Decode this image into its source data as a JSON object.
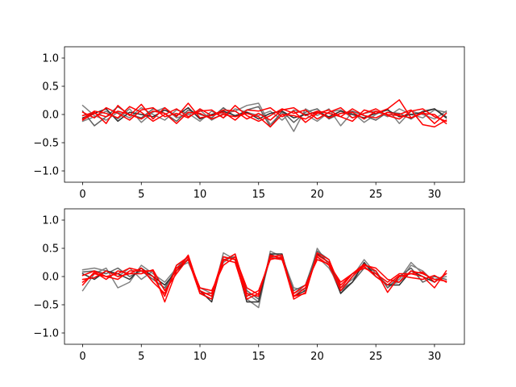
{
  "chart_data": [
    {
      "type": "line",
      "title": "",
      "xlabel": "",
      "ylabel": "",
      "xlim": [
        -1.55,
        32.55
      ],
      "ylim": [
        -1.2,
        1.2
      ],
      "xticks": [
        0,
        5,
        10,
        15,
        20,
        25,
        30
      ],
      "yticks": [
        -1.0,
        -0.5,
        0.0,
        0.5,
        1.0
      ],
      "xtick_labels": [
        "0",
        "5",
        "10",
        "15",
        "20",
        "25",
        "30"
      ],
      "ytick_labels": [
        "−1.0",
        "−0.5",
        "0.0",
        "0.5",
        "1.0"
      ],
      "grid": false,
      "series": [
        {
          "color": "#808080",
          "values": [
            0.16,
            -0.02,
            -0.1,
            0.04,
            -0.06,
            0.12,
            0.0,
            -0.1,
            0.08,
            0.02,
            -0.12,
            0.06,
            -0.06,
            0.1,
            0.04,
            -0.02,
            0.06,
            -0.1,
            0.08,
            0.0,
            -0.12,
            0.04,
            0.08,
            -0.06,
            0.02,
            0.06,
            -0.04,
            0.1,
            0.0,
            -0.06,
            0.08,
            0.04
          ]
        },
        {
          "color": "#808080",
          "values": [
            -0.12,
            -0.04,
            0.06,
            -0.08,
            0.1,
            -0.14,
            0.04,
            0.12,
            -0.06,
            0.0,
            0.08,
            -0.1,
            0.02,
            0.06,
            0.16,
            0.2,
            -0.18,
            0.04,
            -0.3,
            0.1,
            -0.02,
            0.1,
            -0.2,
            0.04,
            -0.14,
            0.0,
            0.1,
            -0.16,
            0.06,
            0.0,
            -0.08,
            0.06
          ]
        },
        {
          "color": "#606060",
          "values": [
            0.06,
            -0.2,
            -0.04,
            0.14,
            0.0,
            -0.06,
            0.1,
            0.02,
            -0.12,
            0.08,
            0.0,
            -0.06,
            0.12,
            -0.04,
            0.08,
            0.14,
            -0.22,
            0.06,
            -0.14,
            0.04,
            0.1,
            -0.08,
            0.02,
            0.06,
            -0.02,
            -0.1,
            0.04,
            0.02,
            -0.08,
            0.06,
            0.1,
            -0.04
          ]
        },
        {
          "color": "#303030",
          "values": [
            -0.06,
            0.02,
            0.1,
            -0.12,
            0.04,
            0.0,
            -0.04,
            0.08,
            -0.02,
            0.12,
            -0.08,
            0.0,
            0.06,
            -0.02,
            0.04,
            -0.08,
            0.02,
            0.06,
            -0.06,
            0.0,
            0.04,
            -0.04,
            0.06,
            0.0,
            -0.06,
            0.02,
            0.08,
            -0.04,
            0.0,
            0.04,
            0.1,
            -0.06
          ]
        },
        {
          "color": "#ff0000",
          "values": [
            -0.02,
            0.04,
            -0.16,
            0.16,
            -0.02,
            0.18,
            -0.08,
            0.12,
            -0.04,
            0.2,
            -0.06,
            -0.02,
            0.08,
            0.06,
            -0.08,
            0.02,
            -0.1,
            0.08,
            0.12,
            -0.02,
            0.06,
            0.02,
            -0.04,
            -0.12,
            0.08,
            0.02,
            0.1,
            0.26,
            -0.06,
            0.04,
            -0.16,
            0.02
          ]
        },
        {
          "color": "#ff0000",
          "values": [
            -0.08,
            0.06,
            0.02,
            -0.06,
            0.14,
            0.04,
            -0.12,
            0.0,
            0.1,
            -0.04,
            0.06,
            0.08,
            -0.06,
            0.16,
            -0.02,
            -0.12,
            -0.02,
            0.1,
            0.02,
            0.08,
            -0.08,
            0.04,
            0.12,
            -0.06,
            0.02,
            0.1,
            -0.02,
            -0.08,
            0.06,
            0.1,
            -0.04,
            -0.12
          ]
        },
        {
          "color": "#ff0000",
          "values": [
            0.04,
            -0.06,
            0.12,
            0.02,
            -0.1,
            0.08,
            0.12,
            -0.04,
            0.02,
            -0.06,
            0.1,
            -0.02,
            0.04,
            -0.1,
            0.08,
            0.06,
            0.12,
            -0.04,
            0.06,
            -0.14,
            0.02,
            0.08,
            -0.04,
            0.1,
            -0.02,
            -0.06,
            0.04,
            0.0,
            0.08,
            -0.18,
            -0.22,
            -0.1
          ]
        },
        {
          "color": "#ff0000",
          "values": [
            -0.1,
            0.02,
            -0.04,
            0.06,
            0.0,
            -0.08,
            0.06,
            0.02,
            -0.16,
            0.04,
            0.02,
            -0.08,
            0.0,
            -0.04,
            0.02,
            -0.04,
            -0.22,
            0.0,
            -0.02,
            -0.08,
            0.04,
            -0.06,
            0.02,
            0.04,
            -0.08,
            0.06,
            0.0,
            -0.02,
            -0.06,
            0.02,
            0.0,
            -0.16
          ]
        }
      ]
    },
    {
      "type": "line",
      "title": "",
      "xlabel": "",
      "ylabel": "",
      "xlim": [
        -1.55,
        32.55
      ],
      "ylim": [
        -1.2,
        1.2
      ],
      "xticks": [
        0,
        5,
        10,
        15,
        20,
        25,
        30
      ],
      "yticks": [
        -1.0,
        -0.5,
        0.0,
        0.5,
        1.0
      ],
      "xtick_labels": [
        "0",
        "5",
        "10",
        "15",
        "20",
        "25",
        "30"
      ],
      "ytick_labels": [
        "−1.0",
        "−0.5",
        "0.0",
        "0.5",
        "1.0"
      ],
      "grid": false,
      "series": [
        {
          "color": "#808080",
          "values": [
            0.12,
            0.15,
            0.1,
            0.0,
            0.15,
            -0.05,
            0.1,
            -0.25,
            0.2,
            0.3,
            -0.3,
            -0.4,
            0.42,
            0.3,
            -0.4,
            -0.55,
            0.45,
            0.35,
            -0.2,
            -0.25,
            0.5,
            0.2,
            -0.3,
            0.0,
            0.3,
            0.05,
            -0.15,
            -0.1,
            0.2,
            0.1,
            -0.1,
            0.05
          ]
        },
        {
          "color": "#808080",
          "values": [
            -0.25,
            0.05,
            0.15,
            -0.2,
            -0.1,
            0.2,
            0.05,
            -0.1,
            0.15,
            0.25,
            -0.2,
            -0.3,
            0.25,
            0.4,
            -0.3,
            -0.45,
            0.35,
            0.3,
            -0.3,
            -0.2,
            0.35,
            0.15,
            -0.2,
            -0.05,
            0.2,
            0.1,
            -0.2,
            -0.05,
            0.25,
            0.05,
            -0.05,
            0.0
          ]
        },
        {
          "color": "#606060",
          "values": [
            0.08,
            0.1,
            0.05,
            0.15,
            0.0,
            0.1,
            -0.05,
            -0.2,
            0.15,
            0.35,
            -0.25,
            -0.35,
            0.3,
            0.35,
            -0.25,
            -0.4,
            0.4,
            0.3,
            -0.25,
            -0.15,
            0.45,
            0.3,
            -0.25,
            -0.1,
            0.15,
            0.1,
            -0.2,
            0.0,
            0.15,
            -0.1,
            0.0,
            -0.05
          ]
        },
        {
          "color": "#303030",
          "values": [
            0.05,
            -0.05,
            0.1,
            0.05,
            -0.05,
            0.15,
            0.0,
            -0.15,
            0.1,
            0.3,
            -0.25,
            -0.45,
            0.35,
            0.3,
            -0.45,
            -0.45,
            0.4,
            0.4,
            -0.35,
            -0.25,
            0.4,
            0.25,
            -0.3,
            -0.1,
            0.25,
            0.0,
            -0.15,
            -0.15,
            0.1,
            0.0,
            -0.1,
            0.05
          ]
        },
        {
          "color": "#ff0000",
          "values": [
            -0.1,
            0.05,
            0.0,
            -0.05,
            0.1,
            0.1,
            0.1,
            -0.45,
            0.1,
            0.38,
            -0.25,
            -0.35,
            0.28,
            0.4,
            -0.3,
            -0.35,
            0.38,
            0.32,
            -0.4,
            -0.28,
            0.38,
            0.25,
            -0.15,
            0.05,
            0.22,
            0.1,
            -0.28,
            0.0,
            0.05,
            0.08,
            -0.1,
            0.05
          ]
        },
        {
          "color": "#ff0000",
          "values": [
            0.02,
            0.1,
            0.0,
            0.05,
            0.15,
            0.1,
            0.0,
            -0.35,
            0.2,
            0.35,
            -0.3,
            -0.4,
            0.3,
            0.25,
            -0.4,
            -0.3,
            0.35,
            0.38,
            -0.35,
            -0.3,
            0.42,
            0.3,
            -0.2,
            0.05,
            0.15,
            0.05,
            -0.1,
            0.05,
            0.05,
            0.0,
            -0.2,
            0.1
          ]
        },
        {
          "color": "#ff0000",
          "values": [
            -0.05,
            -0.02,
            0.1,
            0.0,
            0.05,
            0.15,
            -0.1,
            -0.3,
            0.15,
            0.3,
            -0.3,
            -0.3,
            0.35,
            0.3,
            -0.35,
            -0.25,
            0.3,
            0.35,
            -0.35,
            -0.2,
            0.35,
            0.2,
            -0.25,
            0.0,
            0.2,
            0.15,
            -0.05,
            -0.1,
            0.1,
            0.05,
            -0.05,
            -0.08
          ]
        },
        {
          "color": "#ff0000",
          "values": [
            -0.15,
            0.08,
            -0.05,
            0.1,
            0.05,
            0.05,
            0.12,
            -0.25,
            0.05,
            0.32,
            -0.2,
            -0.25,
            0.2,
            0.35,
            -0.2,
            -0.32,
            0.33,
            0.3,
            -0.3,
            -0.15,
            0.3,
            0.22,
            -0.1,
            0.05,
            0.18,
            0.0,
            -0.15,
            0.02,
            -0.02,
            -0.05,
            0.02,
            -0.1
          ]
        }
      ]
    }
  ]
}
